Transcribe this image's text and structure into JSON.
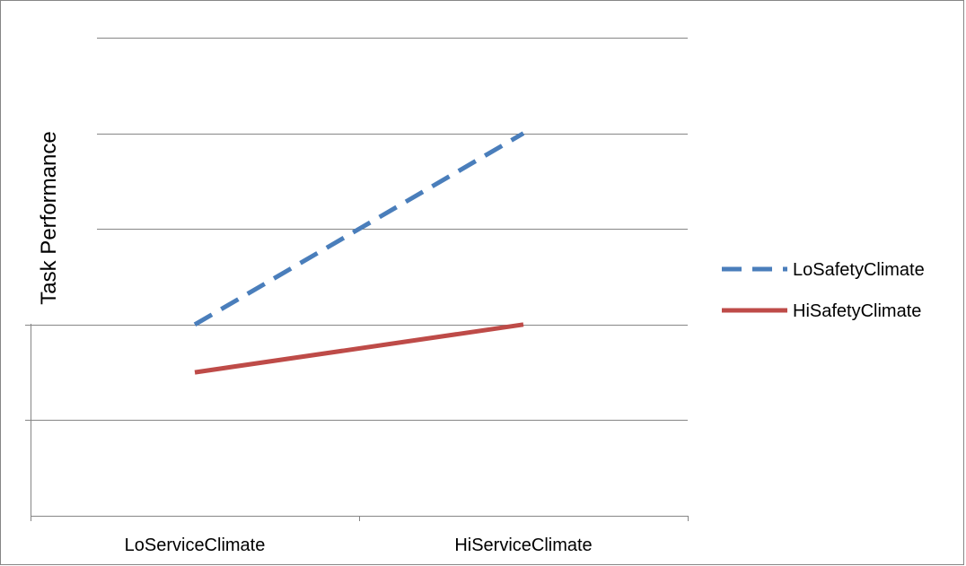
{
  "chart_data": {
    "type": "line",
    "title": "",
    "xlabel": "",
    "ylabel": "Task Performance",
    "categories": [
      "LoServiceClimate",
      "HiServiceClimate"
    ],
    "ylim": [
      0,
      5
    ],
    "grid": true,
    "legend_position": "right",
    "series": [
      {
        "name": "LoSafetyClimate",
        "values": [
          2,
          4
        ],
        "color": "#4a7ebb",
        "style": "dashed"
      },
      {
        "name": "HiSafetyClimate",
        "values": [
          1.5,
          2
        ],
        "color": "#be4b48",
        "style": "solid"
      }
    ]
  }
}
